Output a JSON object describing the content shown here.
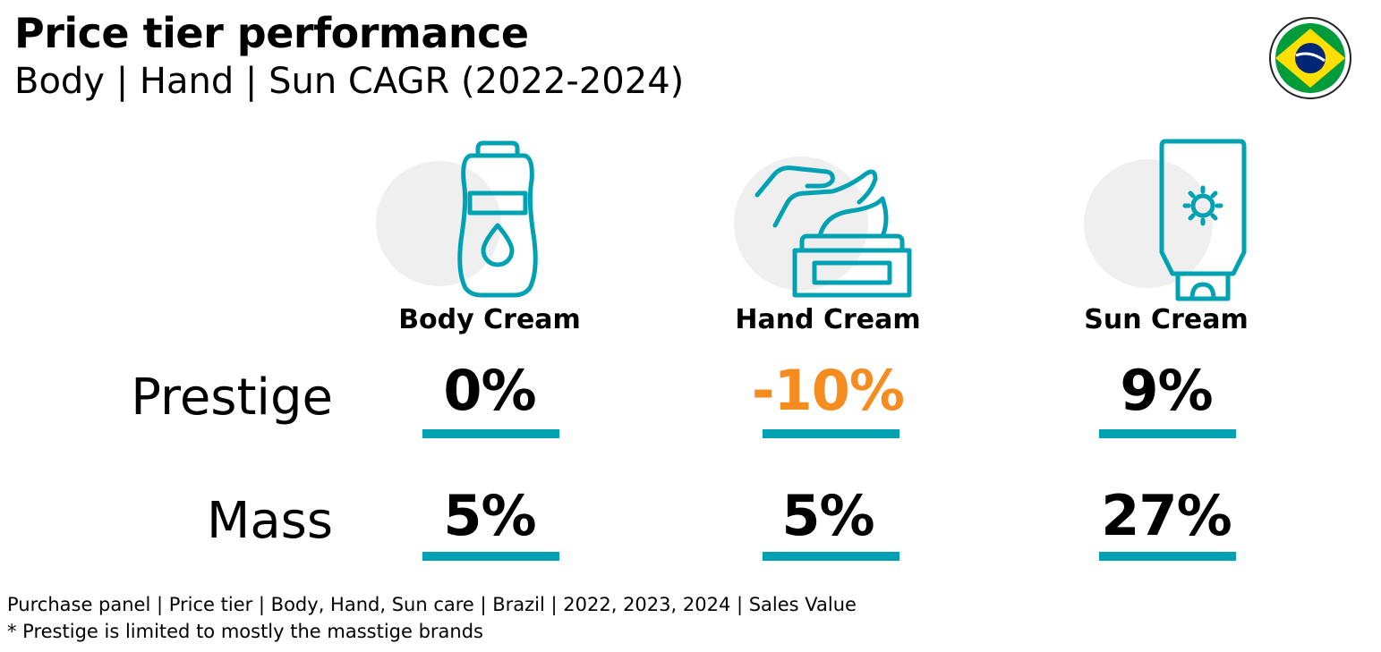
{
  "header": {
    "title": "Price tier performance",
    "subtitle": "Body | Hand | Sun CAGR (2022-2024)"
  },
  "country_flag": {
    "icon": "brazil-flag-icon",
    "colors": [
      "#009c3b",
      "#ffdf00",
      "#002776"
    ]
  },
  "categories": [
    {
      "label": "Body Cream",
      "icon": "body-lotion-bottle-icon"
    },
    {
      "label": "Hand Cream",
      "icon": "hand-cream-jar-icon"
    },
    {
      "label": "Sun Cream",
      "icon": "sunscreen-tube-icon"
    }
  ],
  "rows": [
    {
      "label": "Prestige",
      "values": [
        "0%",
        "-10%",
        "9%"
      ]
    },
    {
      "label": "Mass",
      "values": [
        "5%",
        "5%",
        "27%"
      ]
    }
  ],
  "colors": {
    "accent": "#00a1b3",
    "negative": "#f68b1f",
    "icon_bg": "#efefef"
  },
  "footer": {
    "source": "Purchase panel | Price tier | Body, Hand, Sun care | Brazil | 2022, 2023, 2024 | Sales Value",
    "note": "* Prestige is limited to mostly the masstige brands"
  }
}
